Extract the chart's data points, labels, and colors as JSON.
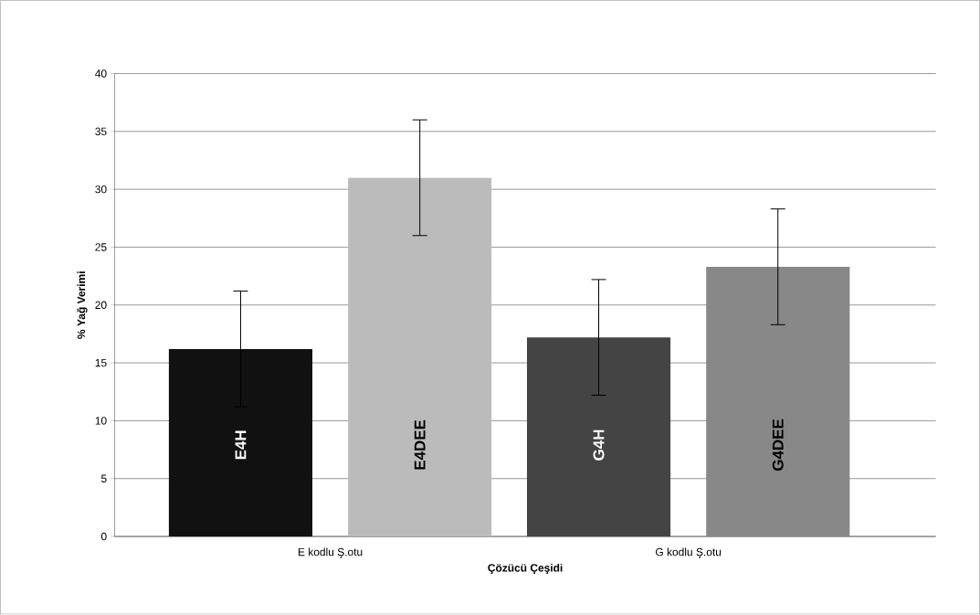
{
  "chart_data": {
    "type": "bar",
    "xlabel": "Çözücü Çeşidi",
    "ylabel": "% Yağ Verimi",
    "categories": [
      "E kodlu  Ş.otu",
      "G kodlu  Ş.otu"
    ],
    "series": [
      {
        "colors": [
          "#111111",
          "#444444"
        ],
        "values": [
          16.2,
          17.2
        ],
        "errors": [
          5,
          5
        ],
        "value_labels": [
          "E4H",
          "G4H"
        ]
      },
      {
        "colors": [
          "#bbbbbb",
          "#888888"
        ],
        "values": [
          31,
          23.3
        ],
        "errors": [
          5,
          5
        ],
        "value_labels": [
          "E4DEE",
          "G4DEE"
        ]
      }
    ],
    "ylim": [
      0,
      40
    ],
    "yticks": [
      0,
      5,
      10,
      15,
      20,
      25,
      30,
      35,
      40
    ],
    "grid": "y"
  }
}
